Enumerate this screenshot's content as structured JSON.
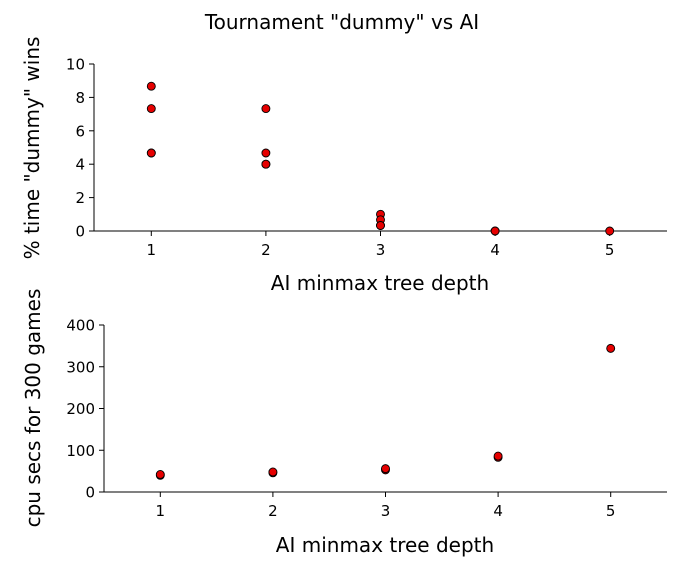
{
  "chart_data": [
    {
      "type": "scatter",
      "title": "Tournament \"dummy\" vs AI",
      "xlabel": "AI minmax tree depth",
      "ylabel": "% time \"dummy\" wins",
      "xlim": [
        0.5,
        5.5
      ],
      "ylim": [
        0,
        10
      ],
      "xticks": [
        "1",
        "2",
        "3",
        "4",
        "5"
      ],
      "yticks": [
        "0",
        "2",
        "4",
        "6",
        "8",
        "10"
      ],
      "grid": false,
      "marker_color": "#e60000",
      "x": [
        1,
        1,
        1,
        1,
        2,
        2,
        2,
        2,
        3,
        3,
        3,
        3,
        4,
        4,
        5
      ],
      "y": [
        8.67,
        7.33,
        4.67,
        4.67,
        7.33,
        4.67,
        4.0,
        4.0,
        1.0,
        0.67,
        0.33,
        0.33,
        0.0,
        0.0,
        0.0
      ]
    },
    {
      "type": "scatter",
      "title": "",
      "xlabel": "AI minmax tree depth",
      "ylabel": "cpu secs for 300 games",
      "xlim": [
        0.5,
        5.5
      ],
      "ylim": [
        0,
        400
      ],
      "xticks": [
        "1",
        "2",
        "3",
        "4",
        "5"
      ],
      "yticks": [
        "0",
        "100",
        "200",
        "300",
        "400"
      ],
      "grid": false,
      "marker_color": "#e60000",
      "x": [
        1,
        1,
        2,
        2,
        3,
        3,
        4,
        4,
        5
      ],
      "y": [
        40,
        42,
        46,
        48,
        53,
        56,
        83,
        86,
        344
      ]
    }
  ]
}
